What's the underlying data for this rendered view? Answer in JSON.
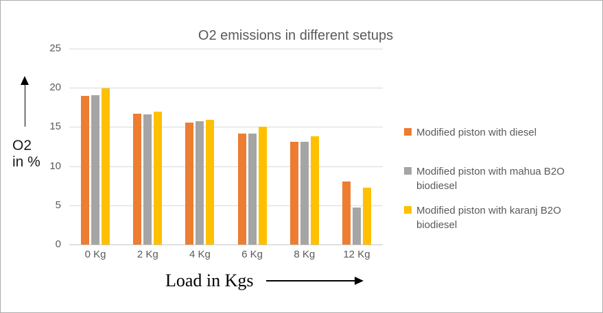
{
  "chart_data": {
    "type": "bar",
    "title": "O2 emissions in different setups",
    "categories": [
      "0 Kg",
      "2 Kg",
      "4 Kg",
      "6 Kg",
      "8 Kg",
      "12 Kg"
    ],
    "series": [
      {
        "name": "Modified piston with diesel",
        "color": "#ED7D31",
        "values": [
          19.0,
          16.7,
          15.6,
          14.2,
          13.1,
          8.0
        ]
      },
      {
        "name": "Modified piston with mahua B2O biodiesel",
        "color": "#A5A5A5",
        "values": [
          19.1,
          16.6,
          15.7,
          14.2,
          13.1,
          4.7
        ]
      },
      {
        "name": "Modified piston with karanj B2O biodiesel",
        "color": "#FFC000",
        "values": [
          19.9,
          17.0,
          15.9,
          15.0,
          13.8,
          7.3
        ]
      }
    ],
    "xlabel": "Load in Kgs",
    "ylabel": "O2 in %",
    "ylim": [
      0,
      25
    ],
    "y_ticks": [
      25,
      20,
      15,
      10,
      5,
      0
    ],
    "grid": true,
    "legend_position": "right"
  },
  "annotations": {
    "y_axis_label_line1": "O2",
    "y_axis_label_line2": "in %",
    "x_axis_label": "Load in Kgs"
  },
  "colors": {
    "gridline": "#d9d9d9",
    "axis_text": "#595959",
    "title_text": "#595959",
    "frame_border": "#ababab"
  }
}
